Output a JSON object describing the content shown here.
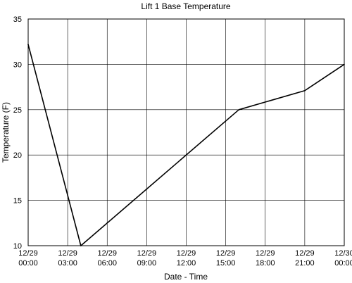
{
  "chart_data": {
    "type": "line",
    "title": "Lift 1 Base Temperature",
    "xlabel": "Date - Time",
    "ylabel": "Temperature (F)",
    "x_axis": {
      "type": "datetime",
      "range": [
        "2023-12-29T00:00",
        "2023-12-30T00:00"
      ],
      "tick_labels": [
        [
          "12/29",
          "00:00"
        ],
        [
          "12/29",
          "03:00"
        ],
        [
          "12/29",
          "06:00"
        ],
        [
          "12/29",
          "09:00"
        ],
        [
          "12/29",
          "12:00"
        ],
        [
          "12/29",
          "15:00"
        ],
        [
          "12/29",
          "18:00"
        ],
        [
          "12/29",
          "21:00"
        ],
        [
          "12/30",
          "00:00"
        ]
      ]
    },
    "ylim": [
      10,
      35
    ],
    "y_ticks": [
      10,
      15,
      20,
      25,
      30,
      35
    ],
    "grid": true,
    "legend": "none",
    "series": [
      {
        "color": "#000000",
        "points": [
          {
            "x": "12/29 00:00",
            "y": 32.2
          },
          {
            "x": "12/29 04:00",
            "y": 10.0
          },
          {
            "x": "12/29 16:00",
            "y": 25.0
          },
          {
            "x": "12/29 21:00",
            "y": 27.1
          },
          {
            "x": "12/30 00:00",
            "y": 30.0
          }
        ]
      }
    ]
  }
}
